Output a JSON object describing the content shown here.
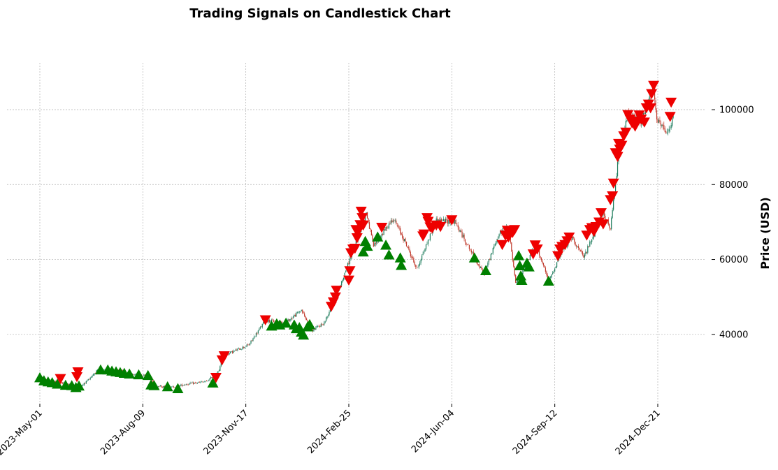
{
  "chart_data": {
    "type": "candlestick",
    "title": "Trading Signals on Candlestick Chart",
    "xlabel": "",
    "ylabel": "Price (USD)",
    "x_start": "2023-05-01",
    "x_end": "2025-01-05",
    "x_ticks": [
      "2023-May-01",
      "2023-Aug-09",
      "2023-Nov-17",
      "2024-Feb-25",
      "2024-Jun-04",
      "2024-Sep-12",
      "2024-Dec-21"
    ],
    "ylim": [
      21500,
      112500
    ],
    "y_ticks": [
      40000,
      60000,
      80000,
      100000
    ],
    "y_tick_labels": [
      "40000",
      "60000",
      "80000",
      "100000"
    ],
    "y_axis_side": "right",
    "grid": true,
    "colors": {
      "up": "#1a7a5a",
      "down": "#c0392b",
      "buy": "#008000",
      "sell": "#ee0000"
    },
    "price_path": [
      [
        "2023-05-01",
        28500
      ],
      [
        "2023-05-10",
        27600
      ],
      [
        "2023-05-25",
        26800
      ],
      [
        "2023-06-10",
        26000
      ],
      [
        "2023-06-25",
        30200
      ],
      [
        "2023-07-15",
        30400
      ],
      [
        "2023-07-31",
        29300
      ],
      [
        "2023-08-15",
        29000
      ],
      [
        "2023-08-22",
        26200
      ],
      [
        "2023-09-05",
        25800
      ],
      [
        "2023-09-20",
        26700
      ],
      [
        "2023-10-10",
        27400
      ],
      [
        "2023-10-22",
        30200
      ],
      [
        "2023-10-25",
        34200
      ],
      [
        "2023-11-20",
        37200
      ],
      [
        "2023-12-06",
        43800
      ],
      [
        "2023-12-25",
        43000
      ],
      [
        "2024-01-10",
        46500
      ],
      [
        "2024-01-20",
        41000
      ],
      [
        "2024-02-01",
        43000
      ],
      [
        "2024-02-15",
        51800
      ],
      [
        "2024-02-28",
        61500
      ],
      [
        "2024-03-13",
        72500
      ],
      [
        "2024-03-20",
        63500
      ],
      [
        "2024-04-08",
        71000
      ],
      [
        "2024-04-20",
        64500
      ],
      [
        "2024-05-01",
        57500
      ],
      [
        "2024-05-20",
        70500
      ],
      [
        "2024-06-07",
        70000
      ],
      [
        "2024-06-25",
        61000
      ],
      [
        "2024-07-05",
        56000
      ],
      [
        "2024-07-20",
        67000
      ],
      [
        "2024-07-29",
        68500
      ],
      [
        "2024-08-05",
        53500
      ],
      [
        "2024-08-25",
        64000
      ],
      [
        "2024-09-06",
        54000
      ],
      [
        "2024-09-20",
        63000
      ],
      [
        "2024-09-29",
        65800
      ],
      [
        "2024-10-10",
        60500
      ],
      [
        "2024-10-29",
        72500
      ],
      [
        "2024-11-05",
        68000
      ],
      [
        "2024-11-13",
        88000
      ],
      [
        "2024-11-22",
        98500
      ],
      [
        "2024-12-05",
        97000
      ],
      [
        "2024-12-17",
        106000
      ],
      [
        "2024-12-20",
        97000
      ],
      [
        "2024-12-31",
        93500
      ],
      [
        "2025-01-05",
        98000
      ]
    ],
    "buy_signals": [
      [
        "2023-05-01",
        28400
      ],
      [
        "2023-05-05",
        27600
      ],
      [
        "2023-05-09",
        27300
      ],
      [
        "2023-05-13",
        27100
      ],
      [
        "2023-05-18",
        26700
      ],
      [
        "2023-05-26",
        26400
      ],
      [
        "2023-06-01",
        26300
      ],
      [
        "2023-06-05",
        25800
      ],
      [
        "2023-06-08",
        26200
      ],
      [
        "2023-06-29",
        30500
      ],
      [
        "2023-07-06",
        30500
      ],
      [
        "2023-07-10",
        30200
      ],
      [
        "2023-07-14",
        30000
      ],
      [
        "2023-07-18",
        29800
      ],
      [
        "2023-07-22",
        29600
      ],
      [
        "2023-07-27",
        29400
      ],
      [
        "2023-08-05",
        29200
      ],
      [
        "2023-08-14",
        29000
      ],
      [
        "2023-08-17",
        26500
      ],
      [
        "2023-08-20",
        26300
      ],
      [
        "2023-09-02",
        26000
      ],
      [
        "2023-09-12",
        25500
      ],
      [
        "2023-10-16",
        27000
      ],
      [
        "2023-12-12",
        42200
      ],
      [
        "2023-12-17",
        42800
      ],
      [
        "2023-12-20",
        42500
      ],
      [
        "2023-12-26",
        43000
      ],
      [
        "2024-01-03",
        42500
      ],
      [
        "2024-01-05",
        41500
      ],
      [
        "2024-01-08",
        41800
      ],
      [
        "2024-01-10",
        40600
      ],
      [
        "2024-01-12",
        39800
      ],
      [
        "2024-01-16",
        42000
      ],
      [
        "2024-01-18",
        42600
      ],
      [
        "2024-03-10",
        62000
      ],
      [
        "2024-03-12",
        64800
      ],
      [
        "2024-03-14",
        63500
      ],
      [
        "2024-03-24",
        66000
      ],
      [
        "2024-04-01",
        63800
      ],
      [
        "2024-04-04",
        61200
      ],
      [
        "2024-04-15",
        60400
      ],
      [
        "2024-04-16",
        58400
      ],
      [
        "2024-06-26",
        60400
      ],
      [
        "2024-07-07",
        57000
      ],
      [
        "2024-08-08",
        61000
      ],
      [
        "2024-08-09",
        58300
      ],
      [
        "2024-08-10",
        55600
      ],
      [
        "2024-08-11",
        54400
      ],
      [
        "2024-08-16",
        59000
      ],
      [
        "2024-08-18",
        58000
      ],
      [
        "2024-09-06",
        54200
      ]
    ],
    "sell_signals": [
      [
        "2023-05-21",
        28200
      ],
      [
        "2023-06-06",
        28700
      ],
      [
        "2023-06-07",
        30000
      ],
      [
        "2023-10-19",
        28500
      ],
      [
        "2023-10-25",
        33200
      ],
      [
        "2023-10-27",
        34300
      ],
      [
        "2023-12-06",
        43900
      ],
      [
        "2024-02-08",
        47500
      ],
      [
        "2024-02-10",
        48700
      ],
      [
        "2024-02-12",
        50000
      ],
      [
        "2024-02-13",
        51800
      ],
      [
        "2024-02-25",
        54500
      ],
      [
        "2024-02-26",
        57000
      ],
      [
        "2024-02-27",
        61800
      ],
      [
        "2024-02-29",
        62800
      ],
      [
        "2024-03-02",
        63000
      ],
      [
        "2024-03-03",
        68000
      ],
      [
        "2024-03-04",
        65800
      ],
      [
        "2024-03-05",
        67500
      ],
      [
        "2024-03-07",
        69300
      ],
      [
        "2024-03-08",
        72900
      ],
      [
        "2024-03-09",
        71200
      ],
      [
        "2024-03-10",
        69200
      ],
      [
        "2024-03-28",
        68600
      ],
      [
        "2024-05-07",
        66300
      ],
      [
        "2024-05-08",
        66800
      ],
      [
        "2024-05-11",
        71200
      ],
      [
        "2024-05-12",
        70200
      ],
      [
        "2024-05-14",
        68700
      ],
      [
        "2024-05-16",
        68400
      ],
      [
        "2024-05-20",
        69200
      ],
      [
        "2024-05-24",
        68800
      ],
      [
        "2024-06-04",
        70600
      ],
      [
        "2024-07-23",
        64000
      ],
      [
        "2024-07-26",
        66500
      ],
      [
        "2024-07-28",
        67800
      ],
      [
        "2024-07-29",
        66000
      ],
      [
        "2024-08-01",
        67700
      ],
      [
        "2024-08-02",
        67200
      ],
      [
        "2024-08-04",
        68000
      ],
      [
        "2024-08-22",
        61500
      ],
      [
        "2024-08-24",
        63900
      ],
      [
        "2024-08-26",
        62800
      ],
      [
        "2024-09-15",
        61000
      ],
      [
        "2024-09-17",
        62800
      ],
      [
        "2024-09-19",
        63500
      ],
      [
        "2024-09-22",
        64000
      ],
      [
        "2024-09-24",
        65000
      ],
      [
        "2024-09-26",
        66000
      ],
      [
        "2024-10-13",
        66500
      ],
      [
        "2024-10-16",
        68000
      ],
      [
        "2024-10-18",
        68500
      ],
      [
        "2024-10-20",
        67500
      ],
      [
        "2024-10-22",
        68800
      ],
      [
        "2024-10-25",
        70000
      ],
      [
        "2024-10-27",
        72500
      ],
      [
        "2024-10-29",
        69500
      ],
      [
        "2024-11-05",
        76000
      ],
      [
        "2024-11-07",
        77000
      ],
      [
        "2024-11-08",
        80400
      ],
      [
        "2024-11-10",
        88500
      ],
      [
        "2024-11-12",
        87500
      ],
      [
        "2024-11-13",
        91000
      ],
      [
        "2024-11-14",
        89500
      ],
      [
        "2024-11-16",
        90500
      ],
      [
        "2024-11-18",
        93000
      ],
      [
        "2024-11-20",
        94000
      ],
      [
        "2024-11-22",
        98700
      ],
      [
        "2024-11-24",
        97500
      ],
      [
        "2024-11-26",
        96500
      ],
      [
        "2024-11-29",
        95600
      ],
      [
        "2024-12-01",
        97000
      ],
      [
        "2024-12-03",
        98600
      ],
      [
        "2024-12-05",
        97500
      ],
      [
        "2024-12-08",
        96700
      ],
      [
        "2024-12-10",
        100500
      ],
      [
        "2024-12-12",
        101500
      ],
      [
        "2024-12-14",
        100500
      ],
      [
        "2024-12-15",
        104300
      ],
      [
        "2024-12-17",
        106500
      ],
      [
        "2025-01-02",
        98200
      ],
      [
        "2025-01-03",
        102000
      ]
    ]
  }
}
